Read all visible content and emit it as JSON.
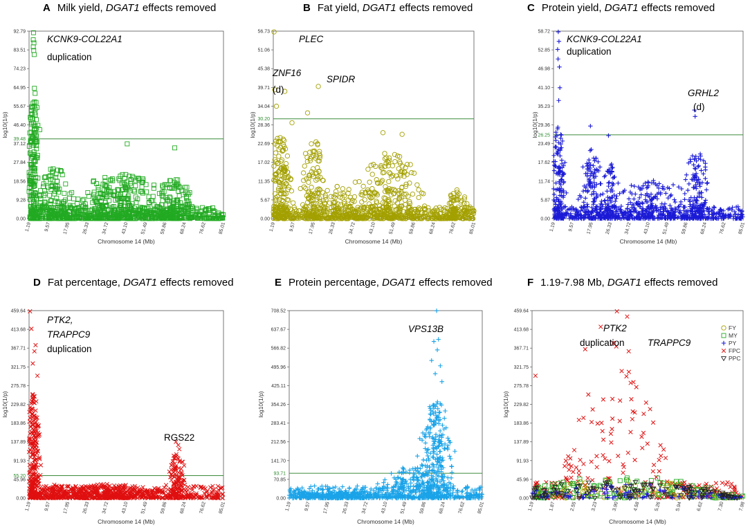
{
  "figure": {
    "width_hint": "2x3 panel grid"
  },
  "chart_data": [
    {
      "id": "A",
      "type": "scatter",
      "letter": "A",
      "title_pre": "Milk yield, ",
      "title_gene": "DGAT1",
      "title_post": " effects removed",
      "xlabel": "Chromosome 14 (Mb)",
      "ylabel": "log10(1/p)",
      "yticks": [
        "0.00",
        "9.28",
        "18.56",
        "27.84",
        "37.12",
        "46.40",
        "55.67",
        "64.95",
        "74.23",
        "83.51",
        "92.79"
      ],
      "ymax": 92.79,
      "xticks": [
        "1.19",
        "9.57",
        "17.95",
        "26.33",
        "34.72",
        "43.10",
        "51.49",
        "59.86",
        "68.24",
        "76.62",
        "85.01"
      ],
      "xmin": 1.19,
      "xmax": 85.01,
      "threshold": 39.48,
      "threshold_label": "39.48",
      "color": "#22aa22",
      "marker": "square",
      "annotations": [
        {
          "text": "KCNK9-COL22A1",
          "italic": true
        },
        {
          "text": "duplication",
          "italic": false
        }
      ],
      "peaks": [
        {
          "center": 3.0,
          "width": 2.2,
          "height": 60,
          "n": 150
        },
        {
          "center": 12.0,
          "width": 8,
          "height": 25,
          "n": 120
        },
        {
          "center": 40.0,
          "width": 20,
          "height": 22,
          "n": 250
        },
        {
          "center": 64.0,
          "width": 8,
          "height": 20,
          "n": 120
        }
      ],
      "top_points": [
        [
          3.1,
          92.0
        ],
        [
          3.0,
          88.5
        ],
        [
          3.3,
          87.0
        ],
        [
          3.0,
          85.0
        ],
        [
          3.2,
          83.2
        ],
        [
          3.4,
          81.2
        ],
        [
          3.5,
          64.5
        ],
        [
          3.8,
          62.0
        ],
        [
          4.2,
          57.5
        ],
        [
          4.6,
          55.0
        ],
        [
          4.3,
          49.0
        ],
        [
          5.0,
          46.2
        ],
        [
          5.8,
          44.0
        ],
        [
          43.5,
          37.0
        ],
        [
          64.0,
          35.0
        ]
      ]
    },
    {
      "id": "B",
      "type": "scatter",
      "letter": "B",
      "title_pre": "Fat yield, ",
      "title_gene": "DGAT1",
      "title_post": " effects removed",
      "xlabel": "Chromosome 14 (Mb)",
      "ylabel": "log10(1/p)",
      "yticks": [
        "0.00",
        "5.67",
        "11.35",
        "17.02",
        "22.69",
        "28.36",
        "34.04",
        "39.71",
        "45.38",
        "51.06",
        "56.73"
      ],
      "ymax": 56.73,
      "xticks": [
        "1.19",
        "9.57",
        "17.95",
        "26.33",
        "34.72",
        "43.10",
        "51.49",
        "59.86",
        "68.24",
        "76.62",
        "85.01"
      ],
      "xmin": 1.19,
      "xmax": 85.01,
      "threshold": 30.2,
      "threshold_label": "30.20",
      "color": "#a3a000",
      "marker": "circle",
      "annotations": [
        {
          "text": "PLEC",
          "italic": true
        },
        {
          "text": "ZNF16",
          "italic": true
        },
        {
          "text": "(d)",
          "italic": false
        },
        {
          "text": "SPIDR",
          "italic": true
        }
      ],
      "peaks": [
        {
          "center": 4.0,
          "width": 4,
          "height": 26,
          "n": 160
        },
        {
          "center": 18.0,
          "width": 5,
          "height": 24,
          "n": 120
        },
        {
          "center": 50.0,
          "width": 14,
          "height": 20,
          "n": 220
        },
        {
          "center": 30.0,
          "width": 10,
          "height": 10,
          "n": 100
        },
        {
          "center": 78.0,
          "width": 4,
          "height": 9,
          "n": 60
        }
      ],
      "top_points": [
        [
          1.5,
          56.5
        ],
        [
          1.8,
          39.0
        ],
        [
          6.0,
          38.5
        ],
        [
          20.0,
          40.0
        ],
        [
          15.5,
          32.0
        ],
        [
          2.5,
          34.0
        ],
        [
          9.0,
          29.0
        ],
        [
          47.0,
          26.0
        ],
        [
          55.0,
          25.5
        ]
      ]
    },
    {
      "id": "C",
      "type": "scatter",
      "letter": "C",
      "title_pre": "Protein yield, ",
      "title_gene": "DGAT1",
      "title_post": " effects removed",
      "xlabel": "Chromosome 14 (Mb)",
      "ylabel": "log10(1/p)",
      "yticks": [
        "0.00",
        "5.87",
        "11.74",
        "17.62",
        "23.49",
        "29.36",
        "35.23",
        "41.10",
        "46.98",
        "52.85",
        "58.72"
      ],
      "ymax": 58.72,
      "xticks": [
        "1.19",
        "9.57",
        "17.95",
        "26.33",
        "34.72",
        "43.10",
        "51.49",
        "59.86",
        "68.24",
        "76.62",
        "85.01"
      ],
      "xmin": 1.19,
      "xmax": 85.01,
      "threshold": 26.25,
      "threshold_label": "26.25",
      "color": "#1a1ad6",
      "marker": "plus",
      "annotations": [
        {
          "text": "KCNK9-COL22A1",
          "italic": true
        },
        {
          "text": "duplication",
          "italic": false
        },
        {
          "text": "GRHL2",
          "italic": true
        },
        {
          "text": "(d)",
          "italic": false
        }
      ],
      "peaks": [
        {
          "center": 3.5,
          "width": 3,
          "height": 30,
          "n": 150
        },
        {
          "center": 18.0,
          "width": 5,
          "height": 22,
          "n": 110
        },
        {
          "center": 26.0,
          "width": 4,
          "height": 18,
          "n": 80
        },
        {
          "center": 64.0,
          "width": 6,
          "height": 22,
          "n": 120
        },
        {
          "center": 45.0,
          "width": 18,
          "height": 12,
          "n": 180
        }
      ],
      "top_points": [
        [
          3.3,
          58.5
        ],
        [
          3.6,
          55.5
        ],
        [
          3.0,
          53.0
        ],
        [
          3.2,
          50.0
        ],
        [
          3.8,
          47.5
        ],
        [
          4.0,
          41.0
        ],
        [
          3.5,
          37.0
        ],
        [
          63.5,
          34.0
        ],
        [
          63.8,
          32.0
        ],
        [
          17.5,
          29.0
        ],
        [
          25.5,
          26.0
        ]
      ]
    },
    {
      "id": "D",
      "type": "scatter",
      "letter": "D",
      "title_pre": "Fat percentage, ",
      "title_gene": "DGAT1",
      "title_post": " effects removed",
      "xlabel": "Chromosome 14 (Mb)",
      "ylabel": "log10(1/p)",
      "yticks": [
        "0.00",
        "45.96",
        "91.93",
        "137.89",
        "183.86",
        "229.82",
        "275.78",
        "321.75",
        "367.71",
        "413.68",
        "459.64"
      ],
      "ymax": 459.64,
      "xticks": [
        "1.19",
        "9.57",
        "17.95",
        "26.33",
        "34.72",
        "43.10",
        "51.49",
        "59.86",
        "68.24",
        "76.62",
        "85.01"
      ],
      "xmin": 1.19,
      "xmax": 85.01,
      "threshold": 55.2,
      "threshold_label": "55.20",
      "color": "#e01010",
      "marker": "cross",
      "annotations": [
        {
          "text": "PTK2,",
          "italic": true
        },
        {
          "text": "TRAPPC9",
          "italic": true
        },
        {
          "text": "duplication",
          "italic": false
        },
        {
          "text": "RGS22",
          "italic": false
        }
      ],
      "peaks": [
        {
          "center": 3.0,
          "width": 2.8,
          "height": 260,
          "n": 260
        },
        {
          "center": 65.0,
          "width": 4,
          "height": 110,
          "n": 120
        },
        {
          "center": 35.0,
          "width": 18,
          "height": 35,
          "n": 250
        },
        {
          "center": 12.0,
          "width": 6,
          "height": 35,
          "n": 80
        }
      ],
      "top_points": [
        [
          1.6,
          458.0
        ],
        [
          2.2,
          415.0
        ],
        [
          4.0,
          375.0
        ],
        [
          3.5,
          360.0
        ],
        [
          2.8,
          330.0
        ],
        [
          4.8,
          300.0
        ],
        [
          64.5,
          138.0
        ],
        [
          65.5,
          130.0
        ],
        [
          66.0,
          120.0
        ]
      ]
    },
    {
      "id": "E",
      "type": "scatter",
      "letter": "E",
      "title_pre": "Protein percentage, ",
      "title_gene": "DGAT1",
      "title_post": " effects removed",
      "xlabel": "Chromosome 14 (Mb)",
      "ylabel": "log10(1/p)",
      "yticks": [
        "0.00",
        "70.85",
        "141.70",
        "212.56",
        "283.41",
        "354.26",
        "425.11",
        "495.96",
        "566.82",
        "637.67",
        "708.52"
      ],
      "ymax": 708.52,
      "xticks": [
        "1.19",
        "9.57",
        "17.95",
        "26.33",
        "34.72",
        "43.10",
        "51.49",
        "59.86",
        "68.24",
        "76.62",
        "85.01"
      ],
      "xmin": 1.19,
      "xmax": 85.01,
      "threshold": 93.71,
      "threshold_label": "93.71",
      "color": "#1aa3e8",
      "marker": "plus",
      "annotations": [
        {
          "text": "VPS13B",
          "italic": true
        }
      ],
      "peaks": [
        {
          "center": 65.0,
          "width": 7,
          "height": 380,
          "n": 260
        },
        {
          "center": 55.0,
          "width": 14,
          "height": 120,
          "n": 200
        },
        {
          "center": 20.0,
          "width": 20,
          "height": 25,
          "n": 200
        }
      ],
      "top_points": [
        [
          65.2,
          708.0
        ],
        [
          64.0,
          592.0
        ],
        [
          66.0,
          600.0
        ],
        [
          65.5,
          560.0
        ],
        [
          63.0,
          520.0
        ],
        [
          66.8,
          500.0
        ],
        [
          64.6,
          470.0
        ],
        [
          67.5,
          440.0
        ]
      ]
    },
    {
      "id": "F",
      "type": "scatter",
      "letter": "F",
      "title_pre": "1.19-7.98 Mb, ",
      "title_gene": "DGAT1",
      "title_post": " effects removed",
      "xlabel": "Chromosome 14 (Mb)",
      "ylabel": "log10(1/p)",
      "yticks": [
        "0.00",
        "45.96",
        "91.93",
        "137.89",
        "183.86",
        "229.82",
        "275.78",
        "321.75",
        "367.71",
        "413.68",
        "459.64"
      ],
      "ymax": 459.64,
      "xticks": [
        "1.19",
        "1.87",
        "2.55",
        "3.23",
        "3.90",
        "4.58",
        "5.26",
        "5.94",
        "6.62",
        "7.30",
        "7.98"
      ],
      "xmin": 1.19,
      "xmax": 7.98,
      "threshold": null,
      "threshold_label": "",
      "annotations": [
        {
          "text": "PTK2",
          "italic": true
        },
        {
          "text": "duplication",
          "italic": false
        },
        {
          "text": "TRAPPC9",
          "italic": true
        }
      ],
      "legend": [
        {
          "label": "FY",
          "color": "#a3a000",
          "marker": "circle"
        },
        {
          "label": "MY",
          "color": "#22aa22",
          "marker": "square"
        },
        {
          "label": "PY",
          "color": "#1a1ad6",
          "marker": "plus"
        },
        {
          "label": "FPC",
          "color": "#e01010",
          "marker": "cross"
        },
        {
          "label": "PPC",
          "color": "#222222",
          "marker": "triangle"
        }
      ],
      "series": [
        {
          "name": "FPC",
          "color": "#e01010",
          "marker": "cross",
          "n": 220,
          "center": 3.9,
          "width": 1.2,
          "height": 330
        },
        {
          "name": "FY",
          "color": "#a3a000",
          "marker": "circle",
          "n": 110,
          "center": 4.0,
          "width": 2.5,
          "height": 45
        },
        {
          "name": "MY",
          "color": "#22aa22",
          "marker": "square",
          "n": 110,
          "center": 4.0,
          "width": 2.5,
          "height": 55
        },
        {
          "name": "PY",
          "color": "#1a1ad6",
          "marker": "plus",
          "n": 110,
          "center": 4.0,
          "width": 2.5,
          "height": 35
        },
        {
          "name": "PPC",
          "color": "#222222",
          "marker": "triangle",
          "n": 110,
          "center": 4.0,
          "width": 2.5,
          "height": 45
        }
      ],
      "top_points": [
        [
          3.92,
          458.0
        ],
        [
          4.25,
          445.0
        ],
        [
          3.4,
          420.0
        ],
        [
          3.8,
          380.0
        ],
        [
          3.9,
          372.0
        ],
        [
          4.3,
          360.0
        ],
        [
          2.9,
          365.0
        ],
        [
          1.3,
          300.0
        ]
      ]
    }
  ]
}
